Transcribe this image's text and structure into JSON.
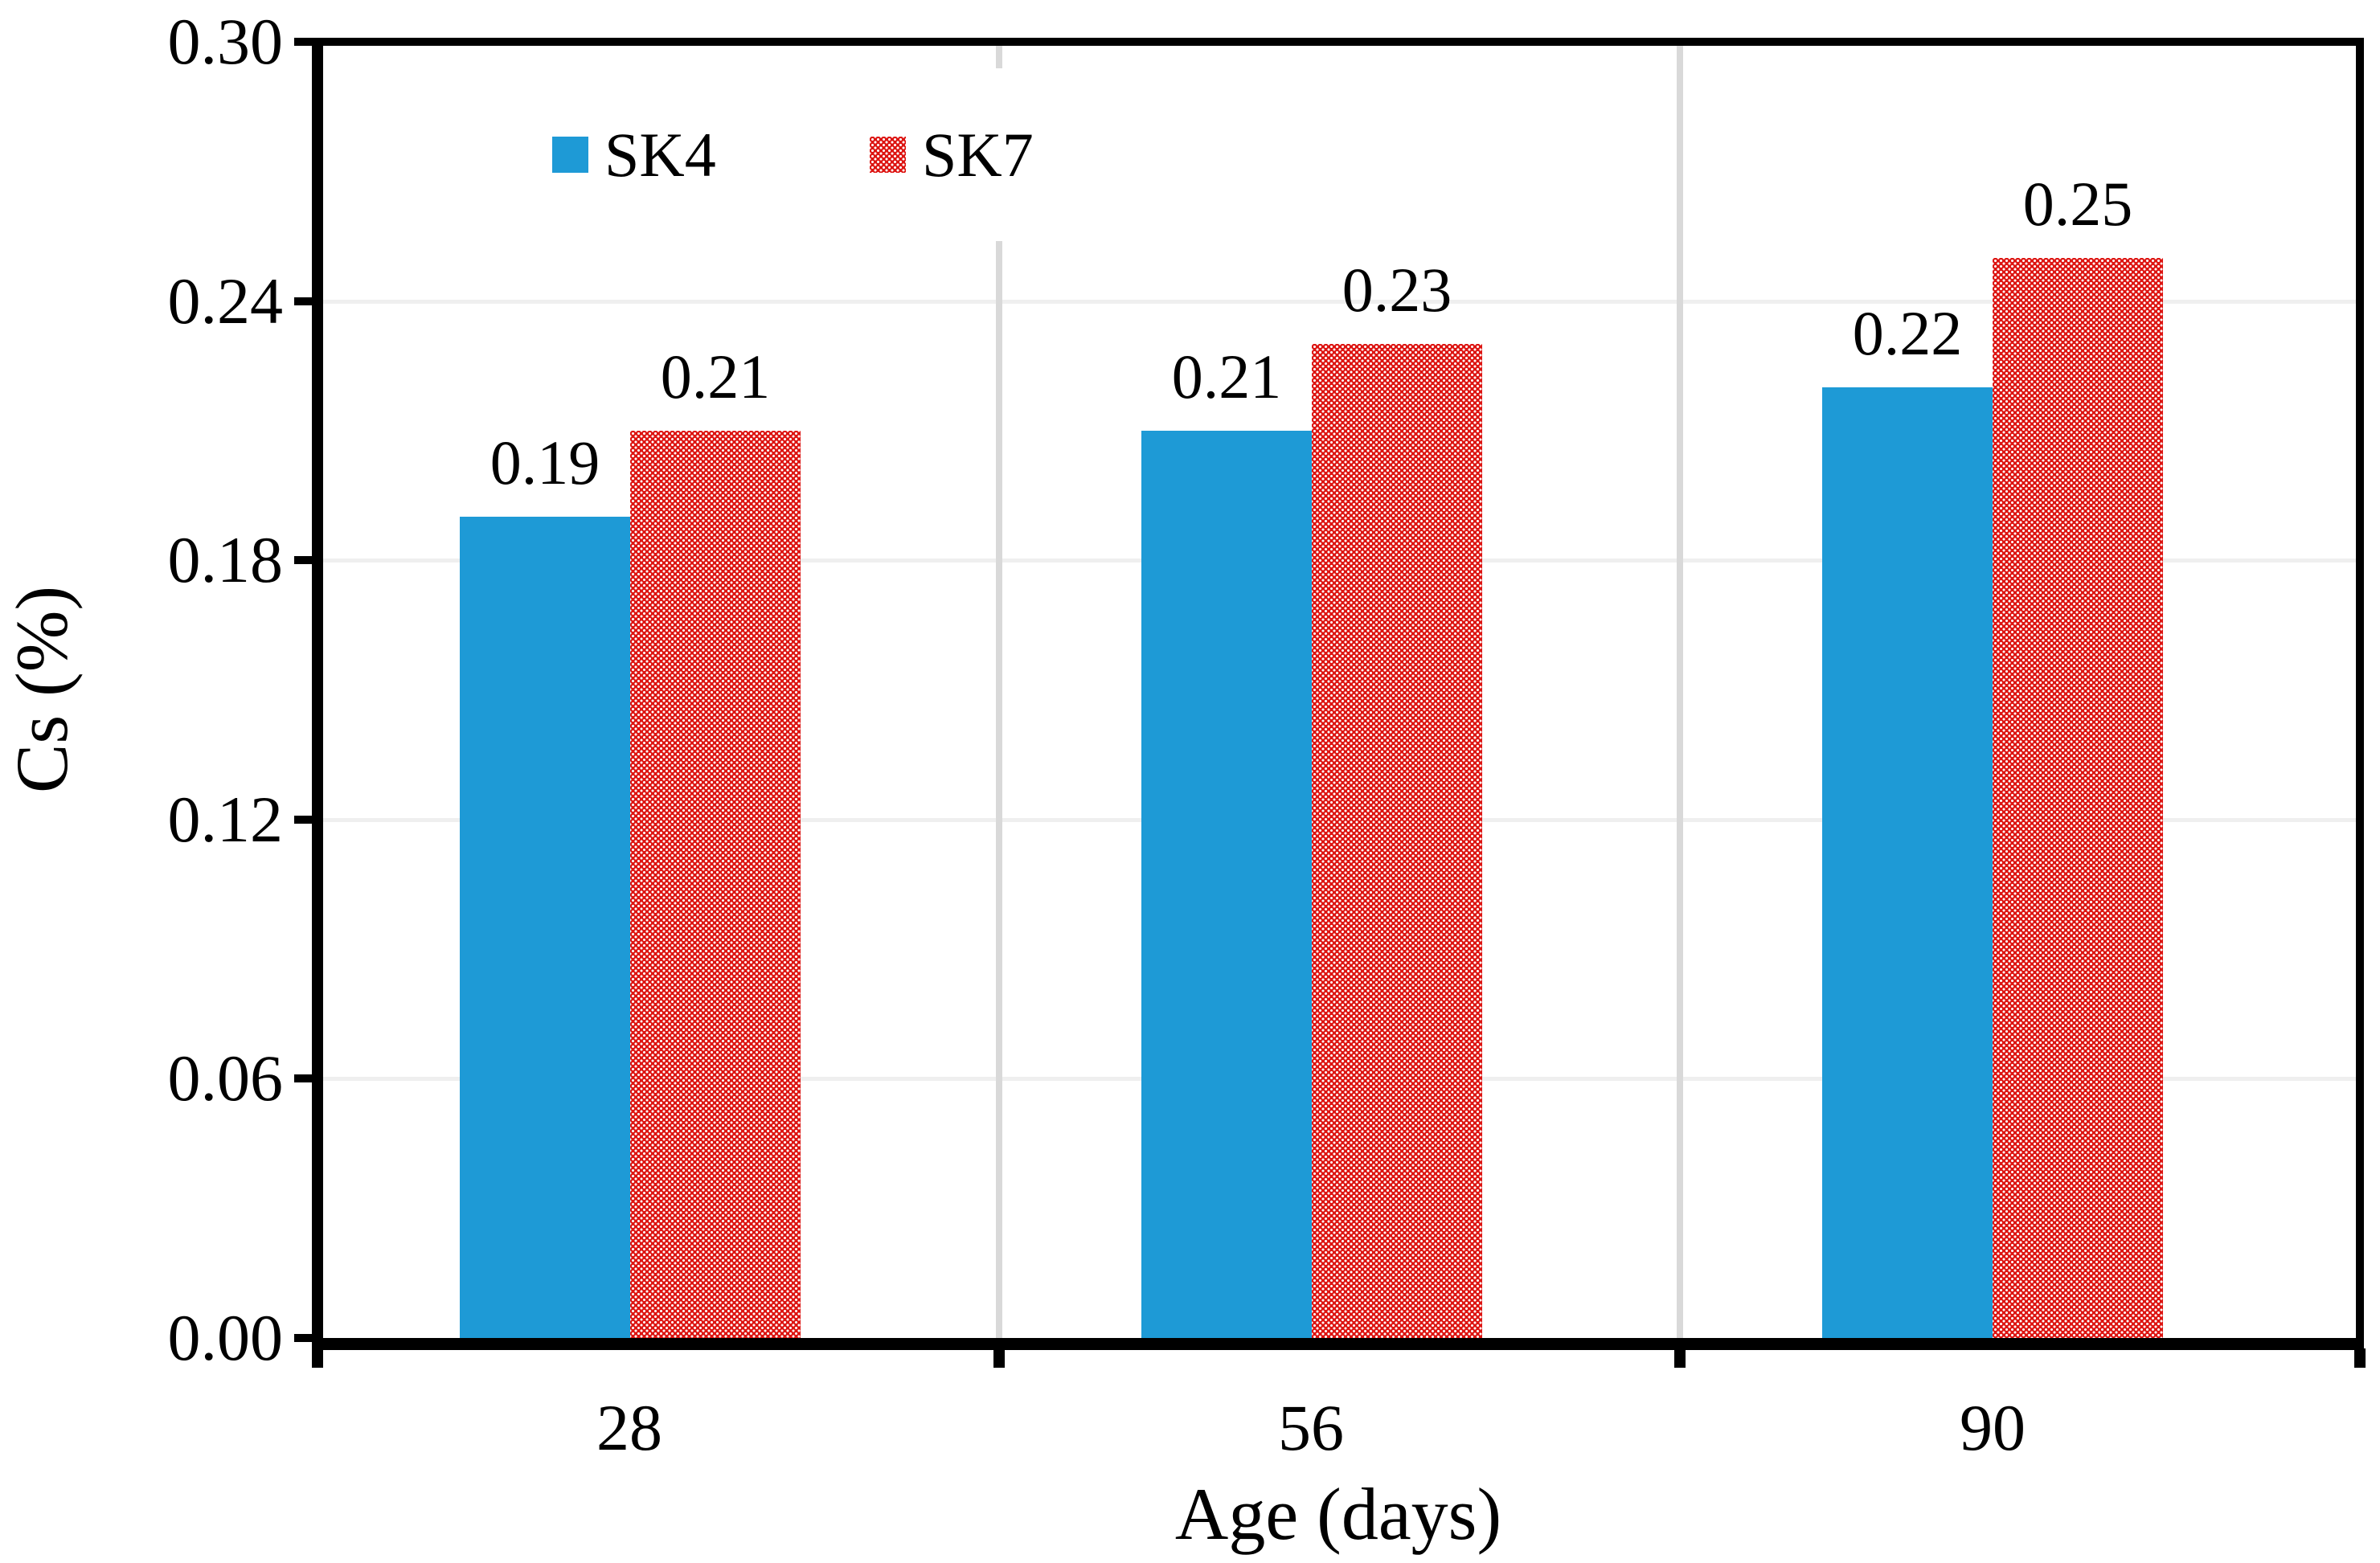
{
  "chart_data": {
    "type": "bar",
    "title": "",
    "xlabel": "Age (days)",
    "ylabel": "Cs (%)",
    "categories": [
      "28",
      "56",
      "90"
    ],
    "series": [
      {
        "name": "SK4",
        "color": "#1e9ad6",
        "fill_style": "solid",
        "values": [
          0.19,
          0.21,
          0.22
        ]
      },
      {
        "name": "SK7",
        "color": "#dd1512",
        "fill_style": "white-dot-pattern",
        "values": [
          0.21,
          0.23,
          0.25
        ]
      }
    ],
    "data_labels": [
      "0.19",
      "0.21",
      "0.21",
      "0.23",
      "0.22",
      "0.25"
    ],
    "ylim": [
      0,
      0.3
    ],
    "yticks": [
      "0.30",
      "0.24",
      "0.18",
      "0.12",
      "0.06",
      "0.00"
    ],
    "ytick_values": [
      0.3,
      0.24,
      0.18,
      0.12,
      0.06,
      0.0
    ],
    "grid": {
      "horizontal": true,
      "horizontal_color": "#efefef",
      "vertical": true,
      "vertical_color": "#d9d9d9"
    },
    "legend_position": "inside-top-left",
    "axis_color": "#000000",
    "text_color": "#000000"
  }
}
